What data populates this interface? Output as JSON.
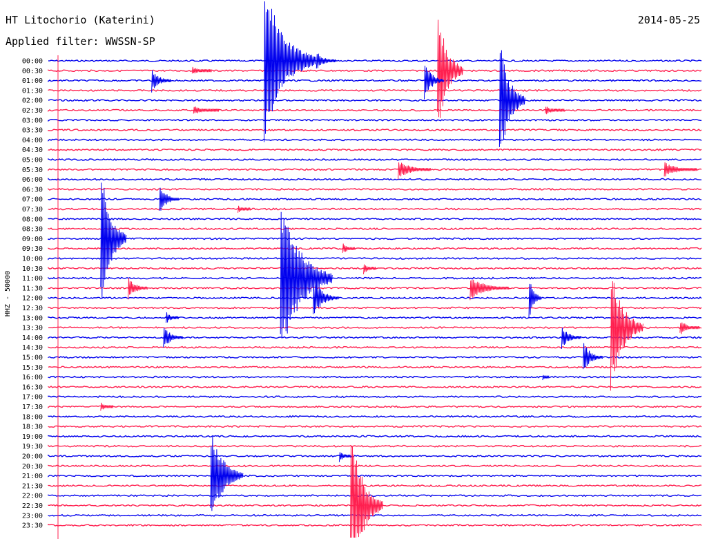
{
  "header": {
    "station": "HT Litochorio (Katerini)",
    "date": "2014-05-25",
    "filter": "Applied filter: WWSSN-SP"
  },
  "chart_data": {
    "type": "line",
    "title": "HT Litochorio (Katerini)",
    "subtitle": "Applied filter: WWSSN-SP",
    "date": "2014-05-25",
    "ylabel": "HHZ - 50000",
    "xlabel": "",
    "colors": [
      "#0000ee",
      "#ff1f4f"
    ],
    "grid": false,
    "rows": [
      "00:00",
      "00:30",
      "01:00",
      "01:30",
      "02:00",
      "02:30",
      "03:00",
      "03:30",
      "04:00",
      "04:30",
      "05:00",
      "05:30",
      "06:00",
      "06:30",
      "07:00",
      "07:30",
      "08:00",
      "08:30",
      "09:00",
      "09:30",
      "10:00",
      "10:30",
      "11:00",
      "11:30",
      "12:00",
      "12:30",
      "13:00",
      "13:30",
      "14:00",
      "14:30",
      "15:00",
      "15:30",
      "16:00",
      "16:30",
      "17:00",
      "17:30",
      "18:00",
      "18:30",
      "19:00",
      "19:30",
      "20:00",
      "20:30",
      "21:00",
      "21:30",
      "22:00",
      "22:30",
      "23:00",
      "23:30"
    ],
    "events": [
      {
        "row": 0,
        "x": 0.33,
        "amp": 1.0,
        "dur": 0.08
      },
      {
        "row": 0,
        "x": 0.41,
        "amp": 0.12,
        "dur": 0.03
      },
      {
        "row": 1,
        "x": 0.22,
        "amp": 0.05,
        "dur": 0.03
      },
      {
        "row": 1,
        "x": 0.595,
        "amp": 0.8,
        "dur": 0.04
      },
      {
        "row": 2,
        "x": 0.158,
        "amp": 0.15,
        "dur": 0.03
      },
      {
        "row": 2,
        "x": 0.575,
        "amp": 0.25,
        "dur": 0.03
      },
      {
        "row": 4,
        "x": 0.69,
        "amp": 0.8,
        "dur": 0.04
      },
      {
        "row": 5,
        "x": 0.222,
        "amp": 0.06,
        "dur": 0.04
      },
      {
        "row": 5,
        "x": 0.76,
        "amp": 0.06,
        "dur": 0.03
      },
      {
        "row": 11,
        "x": 0.535,
        "amp": 0.12,
        "dur": 0.05
      },
      {
        "row": 11,
        "x": 0.942,
        "amp": 0.1,
        "dur": 0.05
      },
      {
        "row": 14,
        "x": 0.17,
        "amp": 0.18,
        "dur": 0.03
      },
      {
        "row": 15,
        "x": 0.29,
        "amp": 0.05,
        "dur": 0.02
      },
      {
        "row": 18,
        "x": 0.08,
        "amp": 0.9,
        "dur": 0.04
      },
      {
        "row": 19,
        "x": 0.45,
        "amp": 0.08,
        "dur": 0.02
      },
      {
        "row": 21,
        "x": 0.482,
        "amp": 0.08,
        "dur": 0.02
      },
      {
        "row": 22,
        "x": 0.355,
        "amp": 1.0,
        "dur": 0.08
      },
      {
        "row": 23,
        "x": 0.122,
        "amp": 0.15,
        "dur": 0.03
      },
      {
        "row": 23,
        "x": 0.645,
        "amp": 0.15,
        "dur": 0.06
      },
      {
        "row": 24,
        "x": 0.405,
        "amp": 0.25,
        "dur": 0.04
      },
      {
        "row": 24,
        "x": 0.735,
        "amp": 0.3,
        "dur": 0.02
      },
      {
        "row": 26,
        "x": 0.18,
        "amp": 0.08,
        "dur": 0.02
      },
      {
        "row": 27,
        "x": 0.86,
        "amp": 0.8,
        "dur": 0.05
      },
      {
        "row": 27,
        "x": 0.966,
        "amp": 0.1,
        "dur": 0.03
      },
      {
        "row": 28,
        "x": 0.176,
        "amp": 0.15,
        "dur": 0.03
      },
      {
        "row": 28,
        "x": 0.785,
        "amp": 0.15,
        "dur": 0.03
      },
      {
        "row": 30,
        "x": 0.818,
        "amp": 0.2,
        "dur": 0.03
      },
      {
        "row": 32,
        "x": 0.756,
        "amp": 0.05,
        "dur": 0.01
      },
      {
        "row": 35,
        "x": 0.08,
        "amp": 0.06,
        "dur": 0.02
      },
      {
        "row": 40,
        "x": 0.445,
        "amp": 0.08,
        "dur": 0.02
      },
      {
        "row": 42,
        "x": 0.248,
        "amp": 0.6,
        "dur": 0.05
      },
      {
        "row": 45,
        "x": 0.462,
        "amp": 1.0,
        "dur": 0.05
      }
    ]
  }
}
